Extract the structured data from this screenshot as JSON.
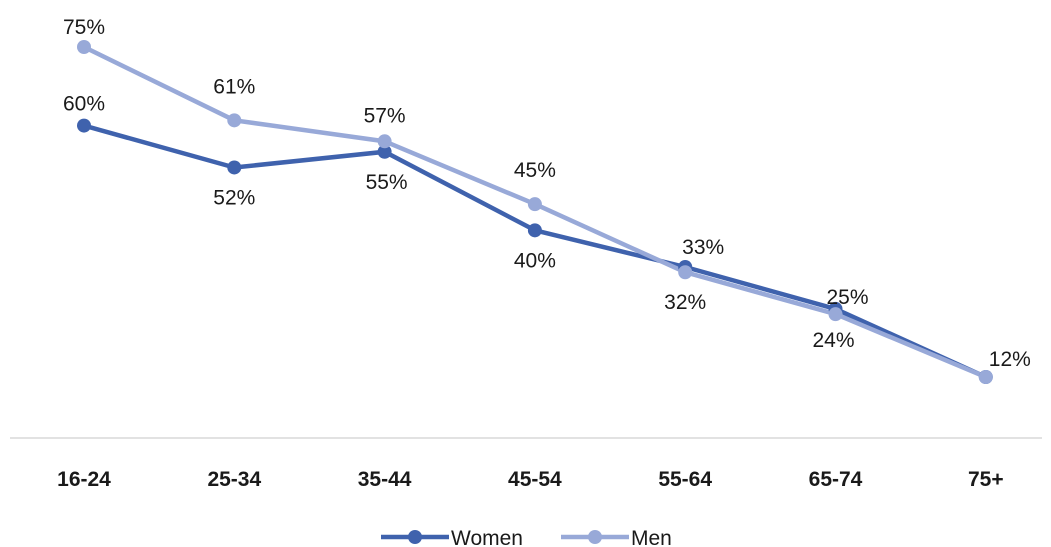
{
  "chart_data": {
    "type": "line",
    "categories": [
      "16-24",
      "25-34",
      "35-44",
      "45-54",
      "55-64",
      "65-74",
      "75+"
    ],
    "series": [
      {
        "name": "Women",
        "values": [
          60,
          52,
          55,
          40,
          33,
          25,
          12
        ],
        "labels": [
          "60%",
          "52%",
          "55%",
          "40%",
          "33%",
          "25%",
          "12%"
        ],
        "color": "#3f62ad"
      },
      {
        "name": "Men",
        "values": [
          75,
          61,
          57,
          45,
          32,
          24,
          12
        ],
        "labels": [
          "75%",
          "61%",
          "57%",
          "45%",
          "32%",
          "24%",
          ""
        ],
        "color": "#98a9d8"
      }
    ],
    "ylim": [
      0,
      80
    ],
    "grid": false,
    "legend_position": "bottom"
  }
}
